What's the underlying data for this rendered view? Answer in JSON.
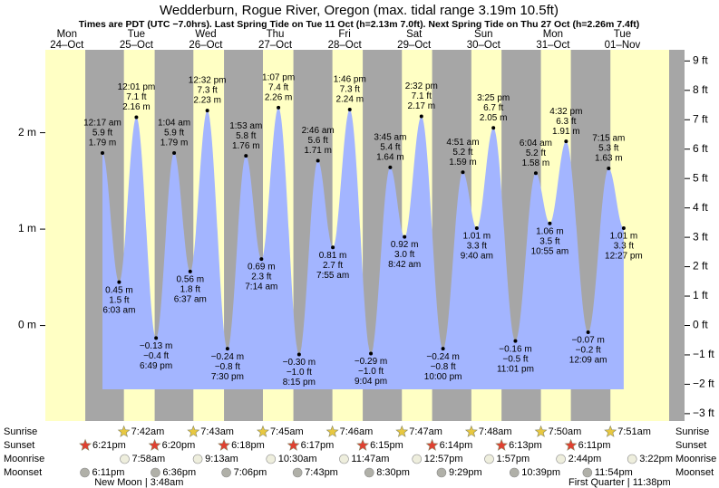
{
  "header": {
    "title": "Wedderburn, Rogue River, Oregon (max. tidal range 3.19m 10.5ft)",
    "subtitle": "Times are PDT (UTC −7.0hrs). Last Spring Tide on Tue 11 Oct (h=2.13m 7.0ft). Next Spring Tide on Thu 27 Oct (h=2.26m 7.4ft)"
  },
  "chart_data": {
    "type": "tide",
    "ylim": [
      -0.99,
      2.86
    ],
    "yticks": [
      {
        "value": 2,
        "label": "2 m"
      },
      {
        "value": 1,
        "label": "1 m"
      },
      {
        "value": 0,
        "label": "0 m"
      }
    ],
    "y2lim": [
      -3.25,
      9.38
    ],
    "y2ticks": [
      {
        "value": 9,
        "label": "9 ft"
      },
      {
        "value": 8,
        "label": "8 ft"
      },
      {
        "value": 7,
        "label": "7 ft"
      },
      {
        "value": 6,
        "label": "6 ft"
      },
      {
        "value": 5,
        "label": "5 ft"
      },
      {
        "value": 4,
        "label": "4 ft"
      },
      {
        "value": 3,
        "label": "3 ft"
      },
      {
        "value": 2,
        "label": "2 ft"
      },
      {
        "value": 1,
        "label": "1 ft"
      },
      {
        "value": 0,
        "label": "0 ft"
      },
      {
        "value": -1,
        "label": "−1 ft"
      },
      {
        "value": -2,
        "label": "−2 ft"
      },
      {
        "value": -3,
        "label": "−3 ft"
      }
    ],
    "fill_color": "#a3b5ff",
    "day_color": "#ffffc4",
    "night_color": "#a6a6a6",
    "row_labels": [
      "Sunrise",
      "Sunset",
      "Moonrise",
      "Moonset"
    ],
    "days": [
      {
        "name": "Mon",
        "date": "24–Oct",
        "color": "#e00000",
        "sunset": "6:21pm",
        "moonset": "6:11pm",
        "tides": []
      },
      {
        "name": "Tue",
        "date": "25–Oct",
        "color": "#000000",
        "sunrise": "7:42am",
        "sunset": "6:20pm",
        "moonrise": "7:58am",
        "moonset": "6:36pm",
        "moon_phase": "New Moon | 3:48am",
        "tides": [
          {
            "time": "12:17 am",
            "height": 1.79,
            "height_label": "1.79 m",
            "feet_label": "5.9 ft"
          },
          {
            "time": "6:03 am",
            "height": 0.45,
            "height_label": "0.45 m",
            "feet_label": "1.5 ft"
          },
          {
            "time": "12:01 pm",
            "height": 2.16,
            "height_label": "2.16 m",
            "feet_label": "7.1 ft"
          },
          {
            "time": "6:49 pm",
            "height": -0.13,
            "height_label": "−0.13 m",
            "feet_label": "−0.4 ft"
          }
        ]
      },
      {
        "name": "Wed",
        "date": "26–Oct",
        "color": "#e00000",
        "sunrise": "7:43am",
        "sunset": "6:18pm",
        "moonrise": "9:13am",
        "moonset": "7:06pm",
        "tides": [
          {
            "time": "1:04 am",
            "height": 1.79,
            "height_label": "1.79 m",
            "feet_label": "5.9 ft"
          },
          {
            "time": "6:37 am",
            "height": 0.56,
            "height_label": "0.56 m",
            "feet_label": "1.8 ft"
          },
          {
            "time": "12:32 pm",
            "height": 2.23,
            "height_label": "2.23 m",
            "feet_label": "7.3 ft"
          },
          {
            "time": "7:30 pm",
            "height": -0.24,
            "height_label": "−0.24 m",
            "feet_label": "−0.8 ft"
          }
        ]
      },
      {
        "name": "Thu",
        "date": "27–Oct",
        "color": "#000000",
        "sunrise": "7:45am",
        "sunset": "6:17pm",
        "moonrise": "10:30am",
        "moonset": "7:43pm",
        "tides": [
          {
            "time": "1:53 am",
            "height": 1.76,
            "height_label": "1.76 m",
            "feet_label": "5.8 ft"
          },
          {
            "time": "7:14 am",
            "height": 0.69,
            "height_label": "0.69 m",
            "feet_label": "2.3 ft"
          },
          {
            "time": "1:07 pm",
            "height": 2.26,
            "height_label": "2.26 m",
            "feet_label": "7.4 ft"
          },
          {
            "time": "8:15 pm",
            "height": -0.3,
            "height_label": "−0.30 m",
            "feet_label": "−1.0 ft"
          }
        ]
      },
      {
        "name": "Fri",
        "date": "28–Oct",
        "color": "#e00000",
        "sunrise": "7:46am",
        "sunset": "6:15pm",
        "moonrise": "11:47am",
        "moonset": "8:30pm",
        "tides": [
          {
            "time": "2:46 am",
            "height": 1.71,
            "height_label": "1.71 m",
            "feet_label": "5.6 ft"
          },
          {
            "time": "7:55 am",
            "height": 0.81,
            "height_label": "0.81 m",
            "feet_label": "2.7 ft"
          },
          {
            "time": "1:46 pm",
            "height": 2.24,
            "height_label": "2.24 m",
            "feet_label": "7.3 ft"
          },
          {
            "time": "9:04 pm",
            "height": -0.29,
            "height_label": "−0.29 m",
            "feet_label": "−1.0 ft"
          }
        ]
      },
      {
        "name": "Sat",
        "date": "29–Oct",
        "color": "#000000",
        "sunrise": "7:47am",
        "sunset": "6:14pm",
        "moonrise": "12:57pm",
        "moonset": "9:29pm",
        "tides": [
          {
            "time": "3:45 am",
            "height": 1.64,
            "height_label": "1.64 m",
            "feet_label": "5.4 ft"
          },
          {
            "time": "8:42 am",
            "height": 0.92,
            "height_label": "0.92 m",
            "feet_label": "3.0 ft"
          },
          {
            "time": "2:32 pm",
            "height": 2.17,
            "height_label": "2.17 m",
            "feet_label": "7.1 ft"
          },
          {
            "time": "10:00 pm",
            "height": -0.24,
            "height_label": "−0.24 m",
            "feet_label": "−0.8 ft"
          }
        ]
      },
      {
        "name": "Sun",
        "date": "30–Oct",
        "color": "#e00000",
        "sunrise": "7:48am",
        "sunset": "6:13pm",
        "moonrise": "1:57pm",
        "moonset": "10:39pm",
        "tides": [
          {
            "time": "4:51 am",
            "height": 1.59,
            "height_label": "1.59 m",
            "feet_label": "5.2 ft"
          },
          {
            "time": "9:40 am",
            "height": 1.01,
            "height_label": "1.01 m",
            "feet_label": "3.3 ft"
          },
          {
            "time": "3:25 pm",
            "height": 2.05,
            "height_label": "2.05 m",
            "feet_label": "6.7 ft"
          },
          {
            "time": "11:01 pm",
            "height": -0.16,
            "height_label": "−0.16 m",
            "feet_label": "−0.5 ft"
          }
        ]
      },
      {
        "name": "Mon",
        "date": "31–Oct",
        "color": "#000000",
        "sunrise": "7:50am",
        "sunset": "6:11pm",
        "moonrise": "2:44pm",
        "moonset": "11:54pm",
        "moon_phase": "First Quarter | 11:38pm",
        "tides": [
          {
            "time": "6:04 am",
            "height": 1.58,
            "height_label": "1.58 m",
            "feet_label": "5.2 ft"
          },
          {
            "time": "10:55 am",
            "height": 1.06,
            "height_label": "1.06 m",
            "feet_label": "3.5 ft"
          },
          {
            "time": "4:32 pm",
            "height": 1.91,
            "height_label": "1.91 m",
            "feet_label": "6.3 ft"
          }
        ]
      },
      {
        "name": "Tue",
        "date": "01–Nov",
        "color": "#e00000",
        "sunrise": "7:51am",
        "moonrise": "3:22pm",
        "tides": [
          {
            "time": "12:09 am",
            "height": -0.07,
            "height_label": "−0.07 m",
            "feet_label": "−0.2 ft"
          },
          {
            "time": "7:15 am",
            "height": 1.63,
            "height_label": "1.63 m",
            "feet_label": "5.3 ft"
          },
          {
            "time": "12:27 pm",
            "height": 1.01,
            "height_label": "1.01 m",
            "feet_label": "3.3 ft"
          }
        ]
      }
    ]
  }
}
